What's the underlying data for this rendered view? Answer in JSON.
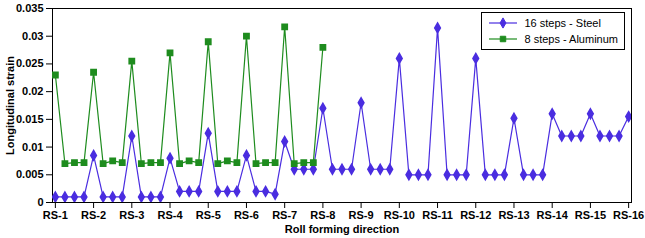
{
  "chart_data": {
    "type": "line",
    "x_label": "Roll forming direction",
    "y_label": "Longitudinal strain",
    "categories": [
      "RS-1",
      null,
      null,
      null,
      "RS-2",
      null,
      null,
      null,
      "RS-3",
      null,
      null,
      null,
      "RS-4",
      null,
      null,
      null,
      "RS-5",
      null,
      null,
      null,
      "RS-6",
      null,
      null,
      null,
      "RS-7",
      null,
      null,
      null,
      "RS-8",
      null,
      null,
      null,
      "RS-9",
      null,
      null,
      null,
      "RS-10",
      null,
      null,
      null,
      "RS-11",
      null,
      null,
      null,
      "RS-12",
      null,
      null,
      null,
      "RS-13",
      null,
      null,
      null,
      "RS-14",
      null,
      null,
      null,
      "RS-15",
      null,
      null,
      null,
      "RS-16"
    ],
    "series": [
      {
        "name": "16 steps - Steel",
        "color": "#4a2de0",
        "marker": "diamond",
        "line_style": "solid",
        "values": [
          0.001,
          0.001,
          0.001,
          0.001,
          0.0085,
          0.001,
          0.001,
          0.001,
          0.012,
          0.001,
          0.001,
          0.001,
          0.008,
          0.002,
          0.002,
          0.002,
          0.0125,
          0.002,
          0.002,
          0.002,
          0.0085,
          0.002,
          0.002,
          0.0015,
          0.011,
          0.006,
          0.006,
          0.006,
          0.017,
          0.006,
          0.006,
          0.006,
          0.018,
          0.006,
          0.006,
          0.006,
          0.026,
          0.005,
          0.005,
          0.005,
          0.0315,
          0.005,
          0.005,
          0.005,
          0.026,
          0.005,
          0.005,
          0.005,
          0.0152,
          0.005,
          0.005,
          0.005,
          0.016,
          0.012,
          0.012,
          0.012,
          0.016,
          0.012,
          0.012,
          0.012,
          0.0155
        ]
      },
      {
        "name": "8 steps - Aluminum",
        "color": "#1e8c1e",
        "marker": "square",
        "line_style": "solid",
        "values": [
          0.023,
          0.007,
          0.0072,
          0.0072,
          0.0235,
          0.007,
          0.0075,
          0.0072,
          0.0255,
          0.007,
          0.0072,
          0.0072,
          0.027,
          0.007,
          0.0075,
          0.0072,
          0.029,
          0.007,
          0.0075,
          0.0072,
          0.03,
          0.007,
          0.0072,
          0.0072,
          0.0317,
          0.007,
          0.0072,
          0.0072,
          0.028,
          null,
          null,
          null,
          null,
          null,
          null,
          null,
          null,
          null,
          null,
          null,
          null,
          null,
          null,
          null,
          null,
          null,
          null,
          null,
          null,
          null,
          null,
          null,
          null,
          null,
          null,
          null,
          null,
          null,
          null,
          null,
          null
        ]
      }
    ],
    "ylim": [
      0,
      0.035
    ],
    "yticks": [
      0,
      0.005,
      0.01,
      0.015,
      0.02,
      0.025,
      0.03,
      0.035
    ],
    "grid": false,
    "legend": "top-right"
  }
}
